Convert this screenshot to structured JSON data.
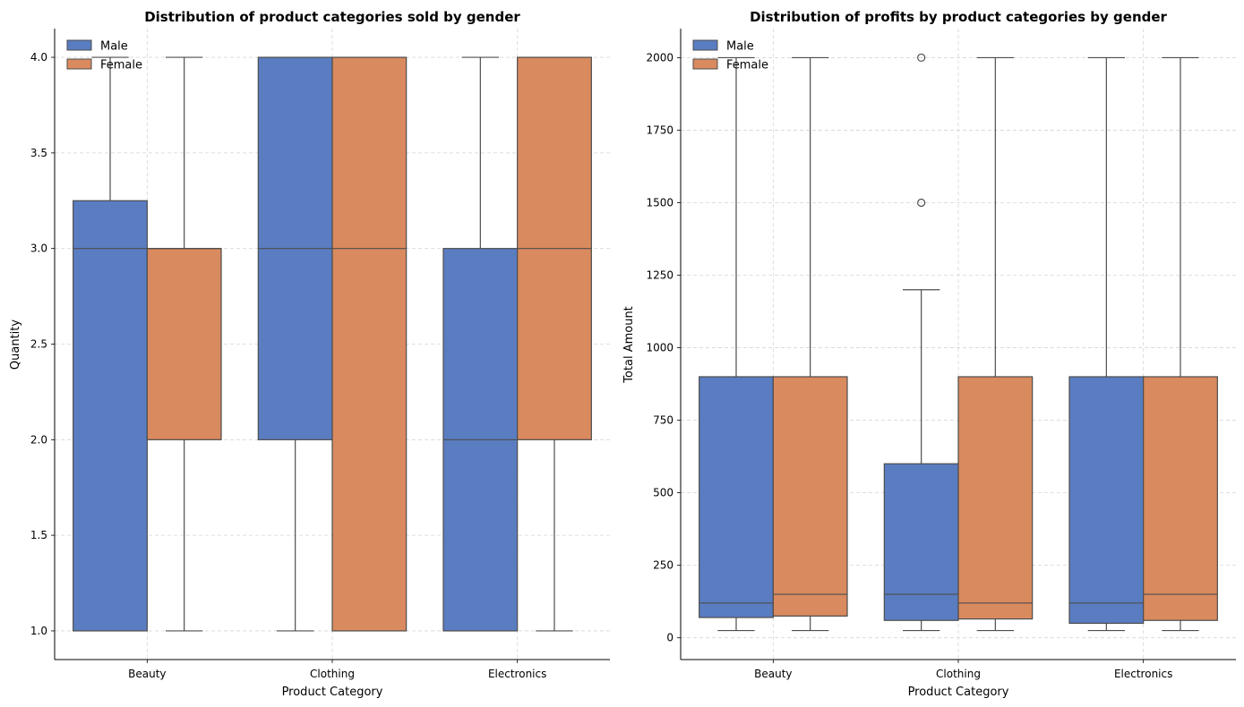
{
  "colors": {
    "Male": "#5a7dc1",
    "Female": "#d98a5e",
    "edge": "#4d4d4d",
    "grid": "#d6d6d6",
    "axis": "#000000"
  },
  "chart_data": [
    {
      "type": "box",
      "title": "Distribution of product categories sold by gender",
      "xlabel": "Product Category",
      "ylabel": "Quantity",
      "ylim": [
        0.85,
        4.15
      ],
      "yticks": [
        1.0,
        1.5,
        2.0,
        2.5,
        3.0,
        3.5,
        4.0
      ],
      "ytick_labels": [
        "1.0",
        "1.5",
        "2.0",
        "2.5",
        "3.0",
        "3.5",
        "4.0"
      ],
      "categories": [
        "Beauty",
        "Clothing",
        "Electronics"
      ],
      "grid": true,
      "legend": {
        "placement": "upper-left",
        "entries": [
          "Male",
          "Female"
        ]
      },
      "series": [
        {
          "name": "Male",
          "boxes": [
            {
              "whislo": 1,
              "q1": 1,
              "median": 3,
              "q3": 3.25,
              "whishi": 4,
              "fliers": []
            },
            {
              "whislo": 1,
              "q1": 2,
              "median": 3,
              "q3": 4,
              "whishi": 4,
              "fliers": []
            },
            {
              "whislo": 1,
              "q1": 1,
              "median": 2,
              "q3": 3,
              "whishi": 4,
              "fliers": []
            }
          ]
        },
        {
          "name": "Female",
          "boxes": [
            {
              "whislo": 1,
              "q1": 2,
              "median": 3,
              "q3": 3,
              "whishi": 4,
              "fliers": []
            },
            {
              "whislo": 1,
              "q1": 1,
              "median": 3,
              "q3": 4,
              "whishi": 4,
              "fliers": []
            },
            {
              "whislo": 1,
              "q1": 2,
              "median": 3,
              "q3": 4,
              "whishi": 4,
              "fliers": []
            }
          ]
        }
      ]
    },
    {
      "type": "box",
      "title": "Distribution of profits by product categories by gender",
      "xlabel": "Product Category",
      "ylabel": "Total Amount",
      "ylim": [
        -75,
        2100
      ],
      "yticks": [
        0,
        250,
        500,
        750,
        1000,
        1250,
        1500,
        1750,
        2000
      ],
      "ytick_labels": [
        "0",
        "250",
        "500",
        "750",
        "1000",
        "1250",
        "1500",
        "1750",
        "2000"
      ],
      "categories": [
        "Beauty",
        "Clothing",
        "Electronics"
      ],
      "grid": true,
      "legend": {
        "placement": "upper-left",
        "entries": [
          "Male",
          "Female"
        ]
      },
      "series": [
        {
          "name": "Male",
          "boxes": [
            {
              "whislo": 25,
              "q1": 70,
              "median": 120,
              "q3": 900,
              "whishi": 2000,
              "fliers": []
            },
            {
              "whislo": 25,
              "q1": 60,
              "median": 150,
              "q3": 600,
              "whishi": 1200,
              "fliers": [
                1500,
                2000
              ]
            },
            {
              "whislo": 25,
              "q1": 50,
              "median": 120,
              "q3": 900,
              "whishi": 2000,
              "fliers": []
            }
          ]
        },
        {
          "name": "Female",
          "boxes": [
            {
              "whislo": 25,
              "q1": 75,
              "median": 150,
              "q3": 900,
              "whishi": 2000,
              "fliers": []
            },
            {
              "whislo": 25,
              "q1": 65,
              "median": 120,
              "q3": 900,
              "whishi": 2000,
              "fliers": []
            },
            {
              "whislo": 25,
              "q1": 60,
              "median": 150,
              "q3": 900,
              "whishi": 2000,
              "fliers": []
            }
          ]
        }
      ]
    }
  ]
}
